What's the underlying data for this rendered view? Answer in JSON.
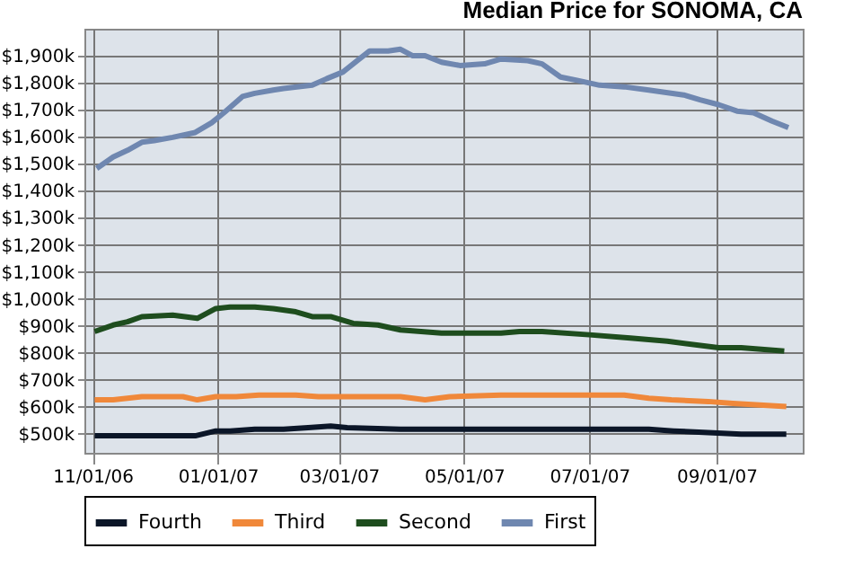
{
  "chart_data": {
    "type": "line",
    "title": "Median Price for SONOMA, CA",
    "xlim": [
      "2006-10-28",
      "2007-10-13"
    ],
    "xticks": [
      {
        "value": "2006-11-01",
        "label": "11/01/06"
      },
      {
        "value": "2007-01-01",
        "label": "01/01/07"
      },
      {
        "value": "2007-03-01",
        "label": "03/01/07"
      },
      {
        "value": "2007-05-01",
        "label": "05/01/07"
      },
      {
        "value": "2007-07-01",
        "label": "07/01/07"
      },
      {
        "value": "2007-09-01",
        "label": "09/01/07"
      }
    ],
    "ylim": [
      430,
      2000
    ],
    "yticks": [
      {
        "value": 500,
        "label": "$500k"
      },
      {
        "value": 600,
        "label": "$600k"
      },
      {
        "value": 700,
        "label": "$700k"
      },
      {
        "value": 800,
        "label": "$800k"
      },
      {
        "value": 900,
        "label": "$900k"
      },
      {
        "value": 1000,
        "label": "$1,000k"
      },
      {
        "value": 1100,
        "label": "$1,100k"
      },
      {
        "value": 1200,
        "label": "$1,200k"
      },
      {
        "value": 1300,
        "label": "$1,300k"
      },
      {
        "value": 1400,
        "label": "$1,400k"
      },
      {
        "value": 1500,
        "label": "$1,500k"
      },
      {
        "value": 1600,
        "label": "$1,600k"
      },
      {
        "value": 1700,
        "label": "$1,700k"
      },
      {
        "value": 1800,
        "label": "$1,800k"
      },
      {
        "value": 1900,
        "label": "$1,900k"
      }
    ],
    "grid": true,
    "legend": "bottom",
    "series": [
      {
        "name": "Fourth",
        "color": "#0b1628",
        "x": [
          "2006-11-02",
          "2006-12-21",
          "2006-12-31",
          "2007-01-07",
          "2007-01-19",
          "2007-02-02",
          "2007-02-14",
          "2007-02-25",
          "2007-03-05",
          "2007-03-31",
          "2007-04-14",
          "2007-04-28",
          "2007-07-30",
          "2007-08-11",
          "2007-08-28",
          "2007-09-13",
          "2007-10-05"
        ],
        "values": [
          493,
          493,
          511,
          511,
          517,
          517,
          523,
          529,
          523,
          517,
          517,
          517,
          517,
          511,
          505,
          499,
          499
        ]
      },
      {
        "name": "Third",
        "color": "#f0883a",
        "x": [
          "2006-11-02",
          "2006-11-11",
          "2006-11-25",
          "2006-12-15",
          "2006-12-22",
          "2006-12-31",
          "2007-01-10",
          "2007-01-21",
          "2007-02-08",
          "2007-02-19",
          "2007-03-08",
          "2007-03-25",
          "2007-03-31",
          "2007-04-12",
          "2007-04-24",
          "2007-05-19",
          "2007-07-18",
          "2007-07-30",
          "2007-08-10",
          "2007-08-28",
          "2007-09-09",
          "2007-10-05"
        ],
        "values": [
          626,
          626,
          638,
          638,
          626,
          638,
          638,
          644,
          644,
          638,
          638,
          638,
          638,
          626,
          638,
          644,
          644,
          632,
          626,
          620,
          613,
          601
        ]
      },
      {
        "name": "Second",
        "color": "#1e4d1e",
        "x": [
          "2006-11-02",
          "2006-11-11",
          "2006-11-18",
          "2006-11-25",
          "2006-12-10",
          "2006-12-22",
          "2006-12-31",
          "2007-01-07",
          "2007-01-19",
          "2007-01-28",
          "2007-02-08",
          "2007-02-16",
          "2007-02-25",
          "2007-03-08",
          "2007-03-20",
          "2007-03-31",
          "2007-04-20",
          "2007-05-19",
          "2007-05-28",
          "2007-06-08",
          "2007-07-01",
          "2007-07-21",
          "2007-08-08",
          "2007-09-02",
          "2007-09-13",
          "2007-10-04"
        ],
        "values": [
          879,
          903,
          915,
          934,
          940,
          928,
          964,
          970,
          970,
          964,
          952,
          934,
          934,
          909,
          903,
          885,
          873,
          873,
          879,
          879,
          867,
          855,
          843,
          819,
          819,
          807
        ]
      },
      {
        "name": "First",
        "color": "#6f87b0",
        "x": [
          "2006-11-03",
          "2006-11-11",
          "2006-11-18",
          "2006-11-25",
          "2006-12-01",
          "2006-12-10",
          "2006-12-21",
          "2006-12-29",
          "2007-01-04",
          "2007-01-13",
          "2007-01-19",
          "2007-01-28",
          "2007-02-02",
          "2007-02-16",
          "2007-02-23",
          "2007-03-03",
          "2007-03-10",
          "2007-03-16",
          "2007-03-25",
          "2007-03-31",
          "2007-04-06",
          "2007-04-12",
          "2007-04-20",
          "2007-04-29",
          "2007-05-11",
          "2007-05-19",
          "2007-06-01",
          "2007-06-08",
          "2007-06-17",
          "2007-06-25",
          "2007-07-06",
          "2007-07-18",
          "2007-07-30",
          "2007-08-16",
          "2007-08-24",
          "2007-09-02",
          "2007-09-11",
          "2007-09-19",
          "2007-09-28",
          "2007-10-06"
        ],
        "values": [
          1483,
          1525,
          1550,
          1580,
          1586,
          1598,
          1616,
          1652,
          1689,
          1749,
          1761,
          1773,
          1779,
          1791,
          1815,
          1840,
          1882,
          1918,
          1918,
          1924,
          1900,
          1900,
          1876,
          1864,
          1870,
          1888,
          1882,
          1870,
          1821,
          1809,
          1791,
          1785,
          1773,
          1755,
          1737,
          1719,
          1695,
          1689,
          1658,
          1634
        ]
      }
    ]
  }
}
